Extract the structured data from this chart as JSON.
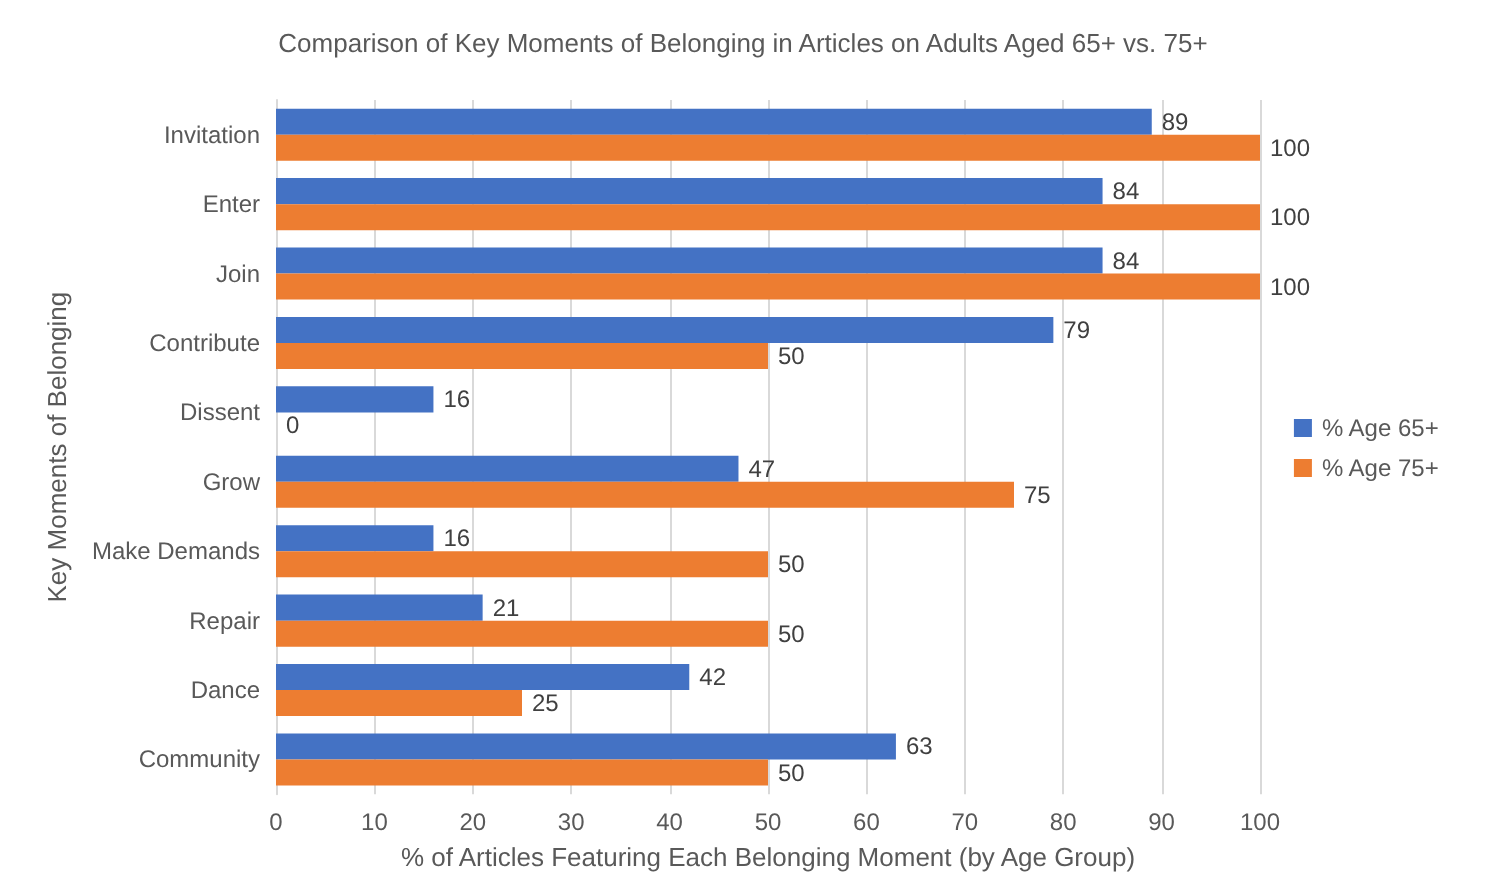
{
  "chart_data": {
    "type": "bar",
    "orientation": "horizontal",
    "title": "Comparison of Key Moments of Belonging in Articles on Adults Aged 65+ vs. 75+",
    "xlabel": "% of Articles Featuring Each Belonging Moment (by Age Group)",
    "ylabel": "Key Moments of Belonging",
    "categories": [
      "Invitation",
      "Enter",
      "Join",
      "Contribute",
      "Dissent",
      "Grow",
      "Make Demands",
      "Repair",
      "Dance",
      "Community"
    ],
    "series": [
      {
        "name": "% Age 65+",
        "color": "#4472c4",
        "values": [
          89,
          84,
          84,
          79,
          16,
          47,
          16,
          21,
          42,
          63
        ]
      },
      {
        "name": "% Age 75+",
        "color": "#ed7d31",
        "values": [
          100,
          100,
          100,
          50,
          0,
          75,
          50,
          50,
          25,
          50
        ]
      }
    ],
    "xlim": [
      0,
      100
    ],
    "xticks": [
      0,
      10,
      20,
      30,
      40,
      50,
      60,
      70,
      80,
      90,
      100
    ],
    "grid": "x",
    "legend": "right",
    "data_labels": true
  }
}
